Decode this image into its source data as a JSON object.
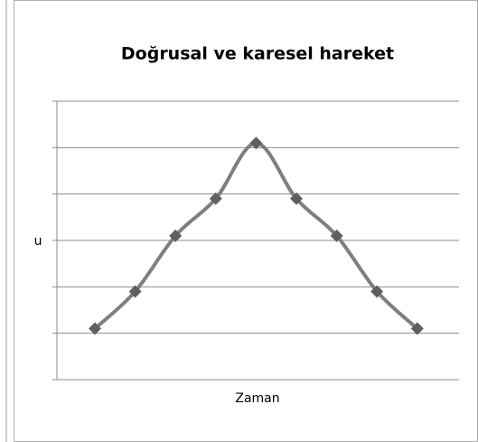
{
  "chart_data": {
    "type": "line",
    "title": "Doğrusal ve karesel hareket",
    "x_label": "Zaman",
    "y_label": "u",
    "categories": [
      null,
      null,
      null,
      null,
      null,
      null,
      null,
      null,
      null
    ],
    "values": [
      1.1,
      1.9,
      3.1,
      3.9,
      5.1,
      3.9,
      3.1,
      1.9,
      1.1
    ],
    "color": "#7f7f7f",
    "marker_color": "#5f5f5f",
    "ylim": [
      0,
      6
    ],
    "yticks": [
      0,
      1,
      2,
      3,
      4,
      5,
      6
    ],
    "grid": true,
    "smooth": true
  }
}
